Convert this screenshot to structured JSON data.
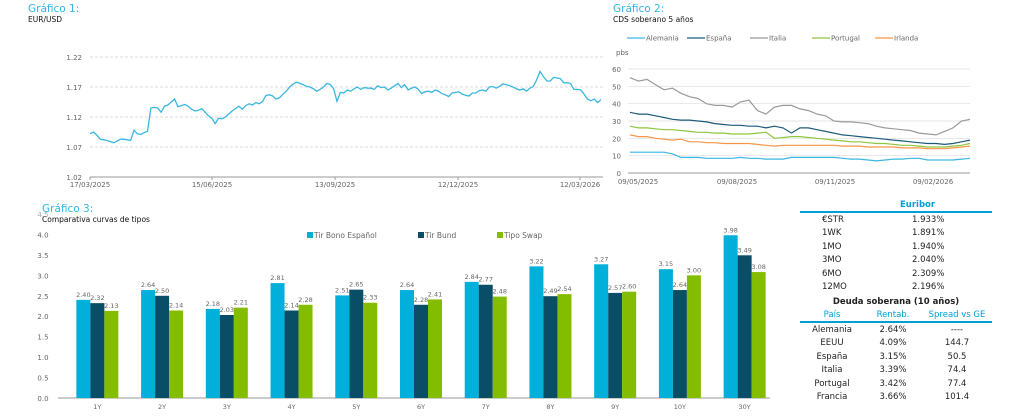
{
  "chart_data": [
    {
      "id": "grafico1",
      "type": "line",
      "title": "Gráfico 1:",
      "subtitle": "EUR/USD",
      "xlabel": "",
      "ylabel": "",
      "ylim": [
        1.02,
        1.22
      ],
      "yticks": [
        "1.02",
        "1.07",
        "1.12",
        "1.17",
        "1.22"
      ],
      "xticks": [
        "17/03/2025",
        "15/06/2025",
        "13/09/2025",
        "12/12/2025",
        "12/03/2026"
      ],
      "grid": true,
      "color": "#3ab7e0",
      "series": [
        {
          "name": "EUR/USD",
          "values": [
            1.092,
            1.095,
            1.09,
            1.083,
            1.082,
            1.081,
            1.079,
            1.077,
            1.08,
            1.083,
            1.083,
            1.082,
            1.081,
            1.098,
            1.092,
            1.091,
            1.094,
            1.096,
            1.135,
            1.136,
            1.135,
            1.128,
            1.138,
            1.14,
            1.145,
            1.15,
            1.137,
            1.139,
            1.141,
            1.138,
            1.133,
            1.13,
            1.131,
            1.134,
            1.128,
            1.122,
            1.118,
            1.109,
            1.118,
            1.117,
            1.12,
            1.125,
            1.13,
            1.134,
            1.138,
            1.133,
            1.139,
            1.142,
            1.14,
            1.144,
            1.142,
            1.146,
            1.156,
            1.157,
            1.155,
            1.15,
            1.152,
            1.158,
            1.163,
            1.17,
            1.175,
            1.178,
            1.176,
            1.174,
            1.171,
            1.17,
            1.167,
            1.163,
            1.166,
            1.17,
            1.176,
            1.174,
            1.167,
            1.146,
            1.161,
            1.16,
            1.165,
            1.163,
            1.167,
            1.17,
            1.166,
            1.169,
            1.168,
            1.168,
            1.166,
            1.172,
            1.169,
            1.17,
            1.165,
            1.168,
            1.172,
            1.176,
            1.169,
            1.174,
            1.165,
            1.168,
            1.17,
            1.166,
            1.159,
            1.162,
            1.163,
            1.161,
            1.165,
            1.163,
            1.159,
            1.157,
            1.154,
            1.16,
            1.161,
            1.162,
            1.158,
            1.156,
            1.155,
            1.16,
            1.16,
            1.164,
            1.165,
            1.163,
            1.17,
            1.171,
            1.168,
            1.171,
            1.175,
            1.174,
            1.172,
            1.17,
            1.167,
            1.165,
            1.167,
            1.163,
            1.168,
            1.171,
            1.182,
            1.196,
            1.187,
            1.18,
            1.18,
            1.186,
            1.185,
            1.184,
            1.177,
            1.177,
            1.176,
            1.166,
            1.166,
            1.165,
            1.158,
            1.15,
            1.147,
            1.15,
            1.144,
            1.149
          ]
        }
      ]
    },
    {
      "id": "grafico2",
      "type": "line",
      "title": "Gráfico 2:",
      "subtitle": "CDS soberano 5 años",
      "ylabel": "pbs",
      "ylim": [
        0,
        60
      ],
      "yticks": [
        "0",
        "10",
        "20",
        "30",
        "40",
        "50",
        "60"
      ],
      "xticks": [
        "09/05/2025",
        "09/08/2025",
        "09/11/2025",
        "09/02/2026"
      ],
      "grid": true,
      "legend": "top",
      "series": [
        {
          "name": "Alemania",
          "color": "#3ab7e0",
          "values": [
            12,
            12,
            12,
            12,
            12,
            11,
            9,
            9,
            9,
            8.5,
            8.5,
            8.5,
            8.5,
            9,
            8.5,
            8.5,
            8,
            8,
            8,
            9,
            9,
            9,
            9,
            9,
            9,
            8.5,
            8,
            8,
            7.5,
            7,
            7.5,
            8,
            8,
            8.5,
            8.5,
            7.5,
            7.5,
            7.5,
            7.5,
            8,
            8.5
          ]
        },
        {
          "name": "España",
          "color": "#1d5a7a",
          "values": [
            35,
            34,
            34,
            33,
            32,
            31,
            30.5,
            30.5,
            30,
            29.5,
            28.5,
            28,
            27.5,
            27.5,
            27,
            27,
            26,
            27,
            26,
            23,
            26,
            26,
            25,
            24,
            23,
            22,
            21.5,
            21,
            20.5,
            20,
            19.5,
            19,
            18.5,
            18,
            17.5,
            17,
            17,
            16.5,
            17,
            18,
            19
          ]
        },
        {
          "name": "Italia",
          "color": "#9a9a9a",
          "values": [
            55,
            53,
            54,
            51,
            48,
            49,
            46,
            44,
            43,
            40,
            39,
            39,
            38,
            41,
            42,
            36,
            34,
            38,
            39,
            39,
            37,
            36,
            34,
            33,
            30,
            29.5,
            29.5,
            29,
            28.5,
            27,
            26,
            25.5,
            25,
            24.5,
            23,
            22.5,
            22,
            24,
            26,
            30,
            31
          ]
        },
        {
          "name": "Portugal",
          "color": "#8dc63f",
          "values": [
            27,
            26,
            26,
            25.5,
            25,
            25,
            24.5,
            24,
            23.5,
            23.5,
            23,
            23,
            22.5,
            22.5,
            22.5,
            23,
            23.5,
            20,
            20.5,
            21,
            21,
            20.5,
            20,
            19.5,
            19,
            18.5,
            18,
            18,
            17.5,
            17,
            17,
            16.5,
            16,
            16,
            15.5,
            15,
            15,
            15,
            15.5,
            16,
            17
          ]
        },
        {
          "name": "Irlanda",
          "color": "#f79646",
          "values": [
            22,
            21,
            21,
            20,
            19.5,
            19,
            19.5,
            18,
            18,
            17.5,
            17.5,
            17,
            17,
            17,
            17,
            16.5,
            16,
            15.5,
            16,
            16,
            16,
            16,
            16,
            16,
            16,
            15.5,
            15.5,
            15.5,
            15,
            15,
            15,
            15,
            14.5,
            14.5,
            14.5,
            14,
            14,
            14,
            14.5,
            15,
            15.5
          ]
        }
      ]
    },
    {
      "id": "grafico3",
      "type": "bar",
      "title": "Gráfico 3:",
      "subtitle": "Comparativa curvas de tipos",
      "ylim": [
        0,
        4.5
      ],
      "yticks": [
        "0.0",
        "0.5",
        "1.0",
        "1.5",
        "2.0",
        "2.5",
        "3.0",
        "3.5",
        "4.0",
        "4.5"
      ],
      "categories": [
        "1Y",
        "2Y",
        "3Y",
        "4Y",
        "5Y",
        "6Y",
        "7Y",
        "8Y",
        "9Y",
        "10Y",
        "30Y"
      ],
      "legend": "top",
      "series": [
        {
          "name": "Tir Bono Español",
          "color": "#00b0da",
          "values": [
            2.4,
            2.64,
            2.18,
            2.81,
            2.51,
            2.64,
            2.84,
            3.22,
            3.27,
            3.15,
            3.98
          ]
        },
        {
          "name": "Tir Bund",
          "color": "#0a4d66",
          "values": [
            2.32,
            2.5,
            2.03,
            2.14,
            2.65,
            2.28,
            2.77,
            2.49,
            2.57,
            2.64,
            3.49
          ]
        },
        {
          "name": "Tipo Swap",
          "color": "#84bd00",
          "values": [
            2.13,
            2.14,
            2.21,
            2.28,
            2.33,
            2.41,
            2.48,
            2.54,
            2.6,
            3.0,
            3.08
          ]
        }
      ]
    }
  ],
  "euribor": {
    "title": "Euribor",
    "rows": [
      {
        "label": "€STR",
        "value": "1.933%"
      },
      {
        "label": "1WK",
        "value": "1.891%"
      },
      {
        "label": "1MO",
        "value": "1.940%"
      },
      {
        "label": "3MO",
        "value": "2.040%"
      },
      {
        "label": "6MO",
        "value": "2.309%"
      },
      {
        "label": "12MO",
        "value": "2.196%"
      }
    ]
  },
  "deuda": {
    "title": "Deuda soberana (10 años)",
    "headers": [
      "País",
      "Rentab.",
      "Spread vs GE"
    ],
    "rows": [
      {
        "pais": "Alemania",
        "rentab": "2.64%",
        "spread": "----"
      },
      {
        "pais": "EEUU",
        "rentab": "4.09%",
        "spread": "144.7"
      },
      {
        "pais": "España",
        "rentab": "3.15%",
        "spread": "50.5"
      },
      {
        "pais": "Italia",
        "rentab": "3.39%",
        "spread": "74.4"
      },
      {
        "pais": "Portugal",
        "rentab": "3.42%",
        "spread": "77.4"
      },
      {
        "pais": "Francia",
        "rentab": "3.66%",
        "spread": "101.4"
      }
    ]
  }
}
